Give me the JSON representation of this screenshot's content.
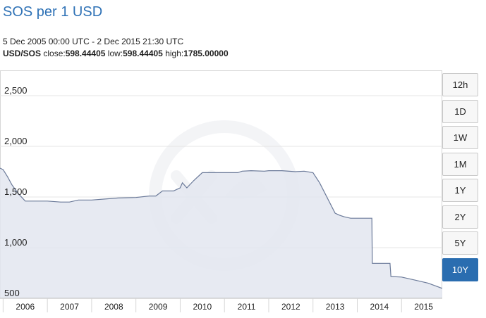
{
  "title": "SOS per 1 USD",
  "date_range": "5 Dec 2005 00:00 UTC - 2 Dec 2015 21:30 UTC",
  "stats": {
    "pair": "USD/SOS",
    "close_label": " close:",
    "close": "598.44405",
    "low_label": " low:",
    "low": "598.44405",
    "high_label": " high:",
    "high": "1785.00000"
  },
  "range_buttons": [
    {
      "label": "12h",
      "active": false
    },
    {
      "label": "1D",
      "active": false
    },
    {
      "label": "1W",
      "active": false
    },
    {
      "label": "1M",
      "active": false
    },
    {
      "label": "1Y",
      "active": false
    },
    {
      "label": "2Y",
      "active": false
    },
    {
      "label": "5Y",
      "active": false
    },
    {
      "label": "10Y",
      "active": true
    }
  ],
  "colors": {
    "line": "#6b7a99",
    "fill": "#e3e6f0",
    "active_button": "#2a6db0"
  },
  "chart_data": {
    "type": "area",
    "title": "SOS per 1 USD",
    "x_tick_labels": [
      "2006",
      "2007",
      "2008",
      "2009",
      "2010",
      "2011",
      "2012",
      "2013",
      "2014",
      "2015"
    ],
    "y_tick_labels": [
      "500",
      "1,000",
      "1,500",
      "2,000",
      "2,500"
    ],
    "y_ticks": [
      500,
      1000,
      1500,
      2000,
      2500
    ],
    "xlim": [
      2005.93,
      2015.92
    ],
    "ylim": [
      500,
      2750
    ],
    "grid": true,
    "series": [
      {
        "x": [
          2005.93,
          2006.0,
          2006.1,
          2006.2,
          2006.35,
          2006.5,
          2007.0,
          2007.3,
          2007.5,
          2007.7,
          2008.0,
          2008.3,
          2008.6,
          2009.0,
          2009.3,
          2009.45,
          2009.6,
          2009.7,
          2009.85,
          2010.0,
          2010.05,
          2010.15,
          2010.3,
          2010.5,
          2010.6,
          2011.0,
          2011.3,
          2011.4,
          2011.6,
          2011.9,
          2012.0,
          2012.3,
          2012.6,
          2012.8,
          2013.0,
          2013.15,
          2013.5,
          2013.6,
          2013.7,
          2013.85,
          2014.0,
          2014.3,
          2014.33,
          2014.34,
          2014.6,
          2014.74,
          2014.76,
          2015.0,
          2015.3,
          2015.6,
          2015.92
        ],
        "y": [
          1785,
          1770,
          1700,
          1620,
          1530,
          1460,
          1460,
          1450,
          1450,
          1470,
          1470,
          1480,
          1490,
          1495,
          1510,
          1510,
          1560,
          1560,
          1560,
          1590,
          1640,
          1590,
          1660,
          1740,
          1740,
          1740,
          1740,
          1755,
          1760,
          1755,
          1760,
          1760,
          1750,
          1755,
          1740,
          1640,
          1340,
          1320,
          1305,
          1290,
          1290,
          1290,
          1290,
          845,
          845,
          845,
          715,
          710,
          680,
          650,
          598
        ]
      }
    ]
  }
}
